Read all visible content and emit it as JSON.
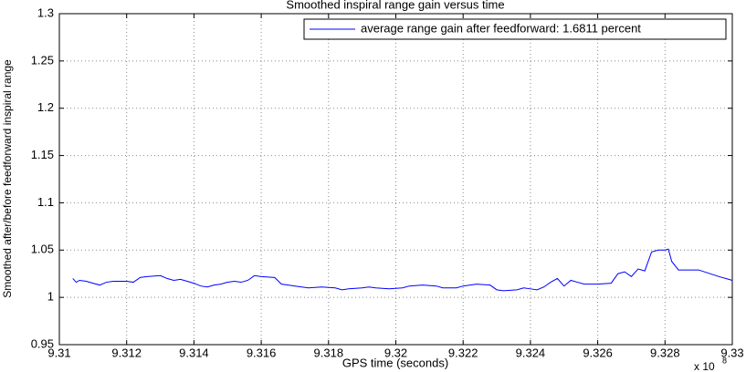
{
  "chart_data": {
    "type": "line",
    "title": "Smoothed inspiral range gain versus time",
    "x_label": "GPS time (seconds)",
    "y_label": "Smoothed after/before feedforward inspiral range",
    "x_multiplier": {
      "base": "x 10",
      "power": "8"
    },
    "xlim": [
      9.31,
      9.33
    ],
    "xticks": [
      9.31,
      9.312,
      9.314,
      9.316,
      9.318,
      9.32,
      9.322,
      9.324,
      9.326,
      9.328,
      9.33
    ],
    "ylim": [
      0.95,
      1.3
    ],
    "yticks": [
      0.95,
      1,
      1.05,
      1.1,
      1.15,
      1.2,
      1.25,
      1.3
    ],
    "grid": true,
    "legend_position": "upper right",
    "x": [
      9.3104,
      9.3105,
      9.3106,
      9.3108,
      9.311,
      9.3112,
      9.3114,
      9.3116,
      9.312,
      9.3122,
      9.3124,
      9.3126,
      9.313,
      9.3132,
      9.3134,
      9.3136,
      9.3138,
      9.314,
      9.3142,
      9.3144,
      9.3146,
      9.3148,
      9.315,
      9.3152,
      9.3154,
      9.3156,
      9.3158,
      9.316,
      9.3164,
      9.3166,
      9.3168,
      9.317,
      9.3174,
      9.3178,
      9.3182,
      9.3184,
      9.3186,
      9.319,
      9.3192,
      9.3194,
      9.3198,
      9.3202,
      9.3204,
      9.3208,
      9.3212,
      9.3214,
      9.3218,
      9.322,
      9.3224,
      9.3228,
      9.323,
      9.3232,
      9.3236,
      9.3238,
      9.324,
      9.3242,
      9.3244,
      9.3246,
      9.3248,
      9.325,
      9.3252,
      9.3254,
      9.3256,
      9.326,
      9.3264,
      9.3266,
      9.3268,
      9.327,
      9.3272,
      9.3274,
      9.3276,
      9.3278,
      9.328,
      9.3281,
      9.3282,
      9.3284,
      9.329,
      9.3296,
      9.3298,
      9.33
    ],
    "series": [
      {
        "name": "average range gain after feedforward: 1.6811 percent",
        "color": "#0000ff",
        "values": [
          1.02,
          1.016,
          1.018,
          1.017,
          1.015,
          1.013,
          1.016,
          1.017,
          1.017,
          1.016,
          1.021,
          1.022,
          1.023,
          1.02,
          1.018,
          1.019,
          1.017,
          1.015,
          1.012,
          1.011,
          1.013,
          1.014,
          1.016,
          1.017,
          1.016,
          1.018,
          1.023,
          1.022,
          1.021,
          1.014,
          1.013,
          1.012,
          1.01,
          1.011,
          1.01,
          1.008,
          1.009,
          1.01,
          1.011,
          1.01,
          1.009,
          1.01,
          1.012,
          1.013,
          1.012,
          1.01,
          1.01,
          1.012,
          1.014,
          1.013,
          1.008,
          1.007,
          1.008,
          1.01,
          1.009,
          1.008,
          1.011,
          1.016,
          1.02,
          1.012,
          1.018,
          1.016,
          1.014,
          1.014,
          1.015,
          1.025,
          1.027,
          1.022,
          1.03,
          1.028,
          1.048,
          1.05,
          1.05,
          1.051,
          1.038,
          1.029,
          1.029,
          1.022,
          1.02,
          1.018
        ]
      }
    ]
  }
}
